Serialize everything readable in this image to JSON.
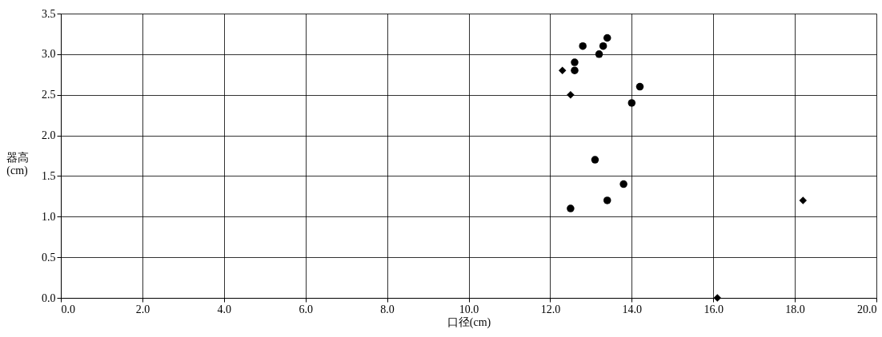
{
  "chart_data": {
    "type": "scatter",
    "xlabel": "口径(cm)",
    "ylabel": "器高\n(cm)",
    "series": [
      {
        "color": "#000000",
        "marker": "circle",
        "x": [
          12.8,
          13.4,
          13.3,
          13.2,
          12.6,
          12.6,
          14.2,
          14.0,
          13.1,
          13.8,
          13.4,
          12.5
        ],
        "values": [
          3.1,
          3.2,
          3.1,
          3.0,
          2.9,
          2.8,
          2.6,
          2.4,
          1.7,
          1.4,
          1.2,
          1.1
        ]
      },
      {
        "color": "#000000",
        "marker": "diamond",
        "x": [
          12.3,
          12.5,
          18.2,
          16.1
        ],
        "values": [
          2.8,
          2.5,
          1.2,
          0.0
        ]
      }
    ],
    "xlim": [
      0,
      20
    ],
    "xticks": [
      {
        "value": 0,
        "label": "0.0"
      },
      {
        "value": 2,
        "label": "2.0"
      },
      {
        "value": 4,
        "label": "4.0"
      },
      {
        "value": 6,
        "label": "6.0"
      },
      {
        "value": 8,
        "label": "8.0"
      },
      {
        "value": 10,
        "label": "10.0"
      },
      {
        "value": 12,
        "label": "12.0"
      },
      {
        "value": 14,
        "label": "14.0"
      },
      {
        "value": 16,
        "label": "16.0"
      },
      {
        "value": 18,
        "label": "18.0"
      },
      {
        "value": 20,
        "label": "20.0"
      }
    ],
    "ylim": [
      0,
      3.5
    ],
    "yticks": [
      {
        "value": 0,
        "label": "0.0"
      },
      {
        "value": 0.5,
        "label": "0.5"
      },
      {
        "value": 1,
        "label": "1.0"
      },
      {
        "value": 1.5,
        "label": "1.5"
      },
      {
        "value": 2,
        "label": "2.0"
      },
      {
        "value": 2.5,
        "label": "2.5"
      },
      {
        "value": 3,
        "label": "3.0"
      },
      {
        "value": 3.5,
        "label": "3.5"
      }
    ],
    "grid": true
  }
}
